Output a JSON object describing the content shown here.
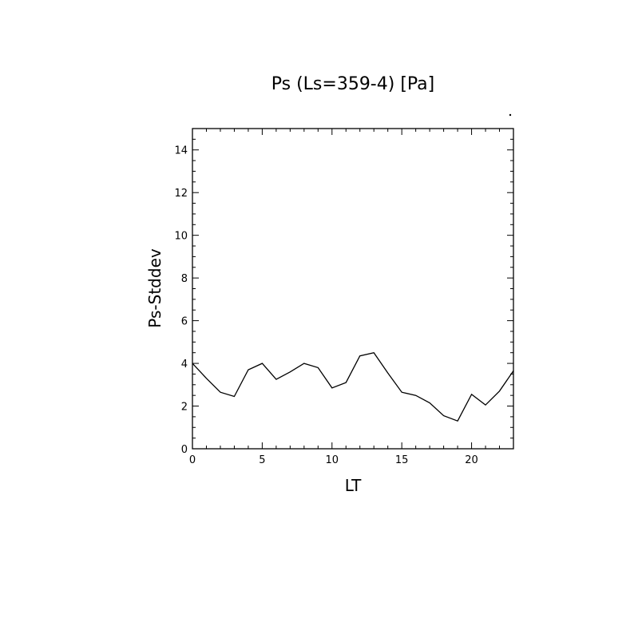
{
  "chart_data": {
    "type": "line",
    "title": "Ps (Ls=359-4) [Pa]",
    "xlabel": "LT",
    "ylabel": "Ps-Stddev",
    "xlim": [
      0,
      23
    ],
    "ylim": [
      0,
      15
    ],
    "x_ticks": [
      0,
      5,
      10,
      15,
      20
    ],
    "y_ticks": [
      0,
      2,
      4,
      6,
      8,
      10,
      12,
      14
    ],
    "x_tick_labels": [
      "0",
      "5",
      "10",
      "15",
      "20"
    ],
    "y_tick_labels": [
      "0",
      "2",
      "4",
      "6",
      "8",
      "10",
      "12",
      "14"
    ],
    "grid": false,
    "line_color": "#000000",
    "series": [
      {
        "x": [
          0,
          1,
          2,
          3,
          4,
          5,
          6,
          7,
          8,
          9,
          10,
          11,
          12,
          13,
          14,
          15,
          16,
          17,
          18,
          19,
          20,
          21,
          22,
          23
        ],
        "values": [
          4.0,
          3.3,
          2.65,
          2.45,
          3.7,
          4.0,
          3.25,
          3.6,
          4.0,
          3.8,
          2.85,
          3.1,
          4.35,
          4.5,
          3.55,
          2.65,
          2.5,
          2.15,
          1.55,
          1.3,
          2.55,
          2.05,
          2.7,
          3.65
        ]
      }
    ]
  }
}
